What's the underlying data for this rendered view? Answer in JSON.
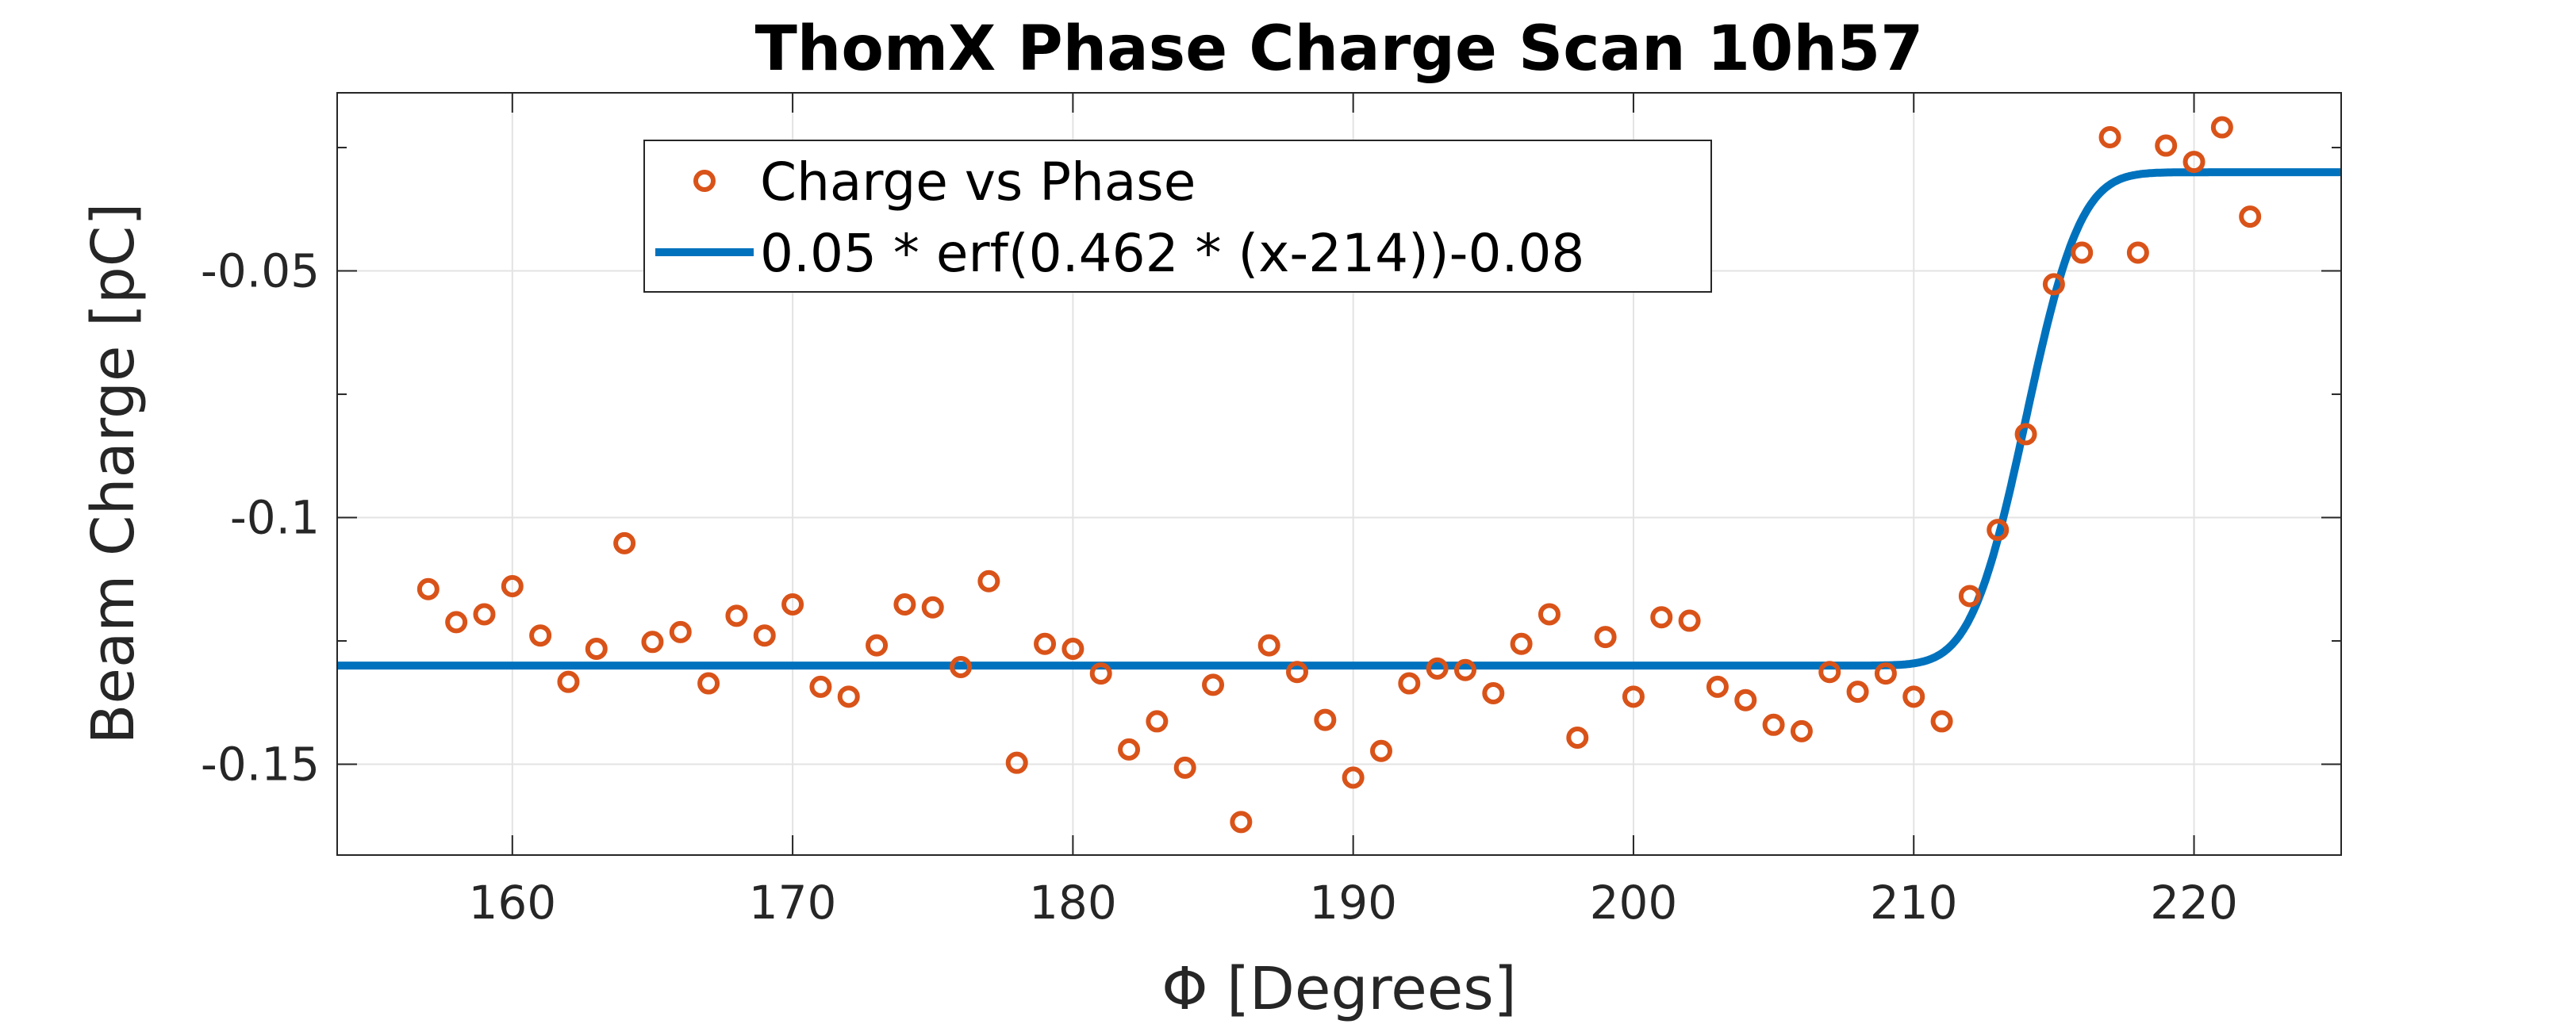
{
  "chart_data": {
    "type": "scatter",
    "title": "ThomX Phase Charge Scan 10h57",
    "xlabel": "Φ [Degrees]",
    "ylabel": "Beam Charge [pC]",
    "xlim": [
      153.75,
      225.25
    ],
    "ylim": [
      -0.1684,
      -0.0139
    ],
    "xticks": [
      160,
      170,
      180,
      190,
      200,
      210,
      220
    ],
    "xtick_labels": [
      "160",
      "170",
      "180",
      "190",
      "200",
      "210",
      "220"
    ],
    "yticks": [
      -0.15,
      -0.1,
      -0.05
    ],
    "ytick_labels": [
      "-0.15",
      "-0.1",
      "-0.05"
    ],
    "grid": true,
    "legend_placement": "top-left",
    "colors": {
      "points": "#D95319",
      "fit": "#0072BD",
      "grid": "#e3e3e3"
    },
    "series": [
      {
        "name": "Charge vs Phase",
        "kind": "markers",
        "x": [
          157,
          158,
          159,
          160,
          161,
          162,
          163,
          164,
          165,
          166,
          167,
          168,
          169,
          170,
          171,
          172,
          173,
          174,
          175,
          176,
          177,
          178,
          179,
          180,
          181,
          182,
          183,
          184,
          185,
          186,
          187,
          188,
          189,
          190,
          191,
          192,
          193,
          194,
          195,
          196,
          197,
          198,
          199,
          200,
          201,
          202,
          203,
          204,
          205,
          206,
          207,
          208,
          209,
          210,
          211,
          212,
          213,
          214,
          215,
          216,
          217,
          218,
          219,
          220,
          221,
          222
        ],
        "y": [
          -0.1145,
          -0.1212,
          -0.1196,
          -0.1139,
          -0.1239,
          -0.1333,
          -0.1266,
          -0.1052,
          -0.1252,
          -0.1232,
          -0.1336,
          -0.1199,
          -0.1239,
          -0.1176,
          -0.1343,
          -0.1363,
          -0.1259,
          -0.1176,
          -0.1182,
          -0.1303,
          -0.1129,
          -0.1497,
          -0.1256,
          -0.1266,
          -0.1316,
          -0.147,
          -0.1413,
          -0.1507,
          -0.1339,
          -0.1617,
          -0.1259,
          -0.1313,
          -0.141,
          -0.1527,
          -0.1473,
          -0.1336,
          -0.1306,
          -0.1309,
          -0.1356,
          -0.1256,
          -0.1196,
          -0.1446,
          -0.1242,
          -0.1363,
          -0.1202,
          -0.1209,
          -0.1343,
          -0.137,
          -0.142,
          -0.1433,
          -0.1313,
          -0.1353,
          -0.1316,
          -0.1363,
          -0.1413,
          -0.1159,
          -0.1025,
          -0.0831,
          -0.0527,
          -0.0463,
          -0.0229,
          -0.0463,
          -0.0246,
          -0.0279,
          -0.0209,
          -0.039
        ]
      },
      {
        "name": "0.05 * erf(0.462 * (x-214))-0.08",
        "kind": "line",
        "function": {
          "a": 0.05,
          "b": 0.462,
          "x0": 214,
          "c": -0.08
        },
        "x_range": [
          153.75,
          225.25
        ]
      }
    ]
  }
}
